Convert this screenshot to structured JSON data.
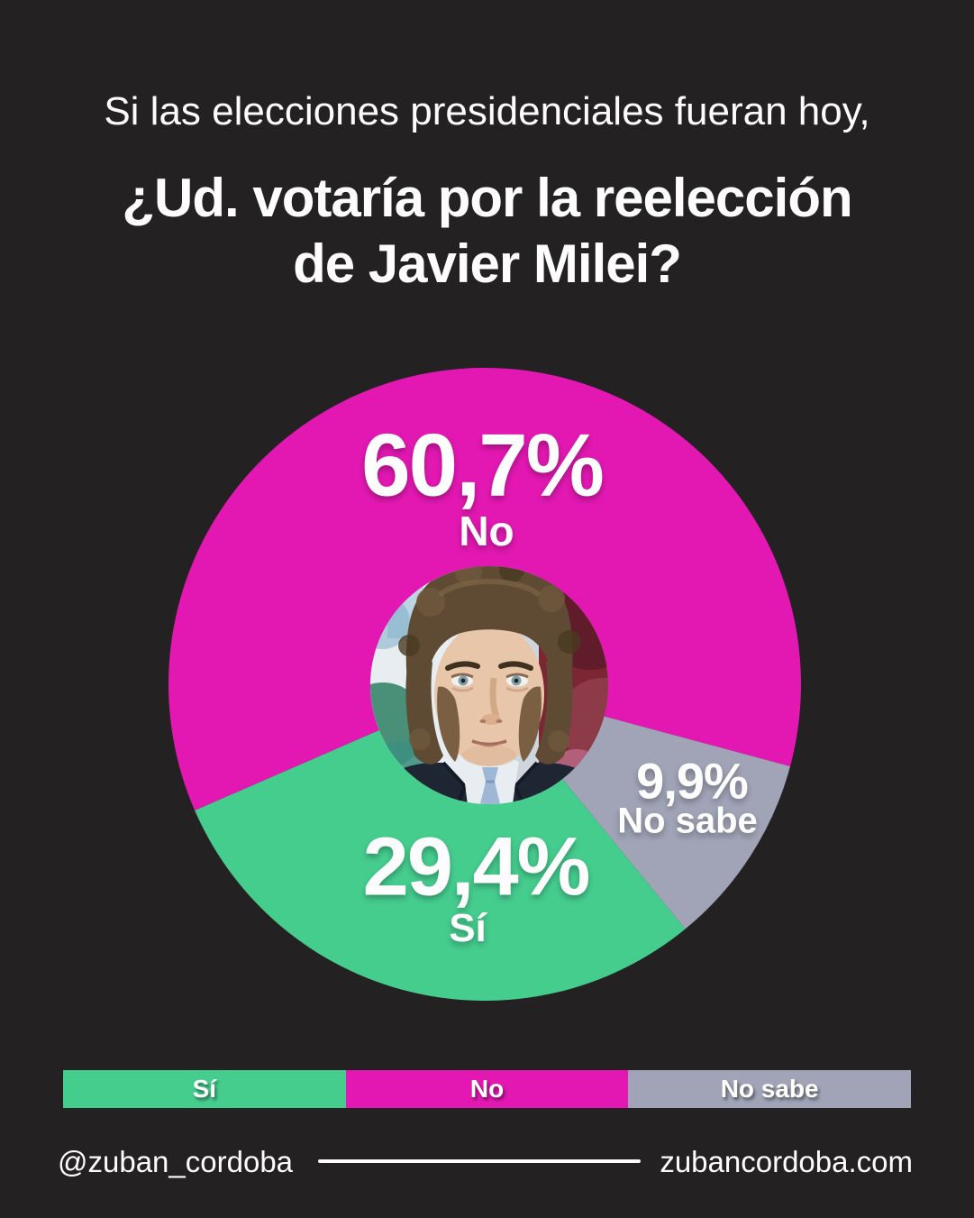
{
  "title": {
    "intro": "Si las elecciones presidenciales fueran hoy,",
    "question_line1": "¿Ud. votaría por la reelección",
    "question_line2": "de Javier Milei?"
  },
  "chart_data": {
    "type": "pie",
    "title": "¿Ud. votaría por la reelección de Javier Milei?",
    "units": "%",
    "start_angle_deg": 156.5,
    "direction": "clockwise",
    "center_overlay": "javier-milei-portrait-photo",
    "slices": [
      {
        "label": "No",
        "value": 60.7,
        "display_value": "60,7%",
        "color": "#e318b2"
      },
      {
        "label": "No sabe",
        "value": 9.9,
        "display_value": "9,9%",
        "color": "#a0a4b6"
      },
      {
        "label": "Sí",
        "value": 29.4,
        "display_value": "29,4%",
        "color": "#45cd8e"
      }
    ]
  },
  "legend": {
    "items": [
      {
        "label": "Sí",
        "color": "#45cd8e"
      },
      {
        "label": "No",
        "color": "#e318b2"
      },
      {
        "label": "No sabe",
        "color": "#a0a4b6"
      }
    ]
  },
  "footer": {
    "social_handle": "@zuban_cordoba",
    "website": "zubancordoba.com"
  },
  "colors": {
    "background": "#242122",
    "text": "#fdfdfd"
  }
}
